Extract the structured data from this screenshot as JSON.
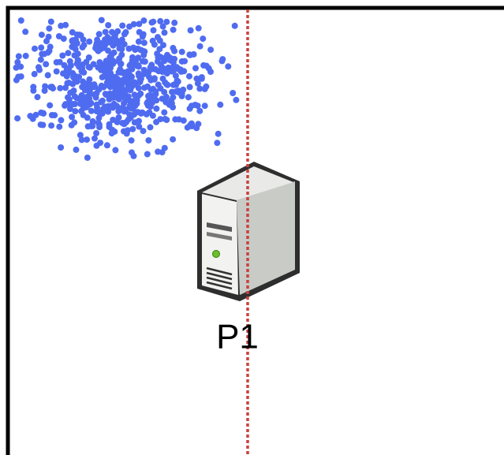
{
  "node": {
    "label": "P1"
  }
}
